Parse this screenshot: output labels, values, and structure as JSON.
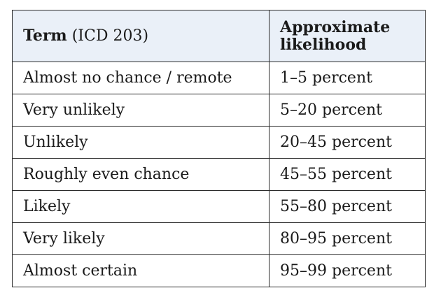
{
  "table": {
    "header": {
      "col1_bold": "Term",
      "col1_rest": " (ICD 203)",
      "col2_line1": "Approximate",
      "col2_line2": "likelihood"
    },
    "rows": [
      {
        "term": "Almost no chance / remote",
        "likelihood": "1–5 percent"
      },
      {
        "term": "Very unlikely",
        "likelihood": "5–20 percent"
      },
      {
        "term": "Unlikely",
        "likelihood": "20–45 percent"
      },
      {
        "term": "Roughly even chance",
        "likelihood": "45–55 percent"
      },
      {
        "term": "Likely",
        "likelihood": "55–80 percent"
      },
      {
        "term": "Very likely",
        "likelihood": "80–95 percent"
      },
      {
        "term": "Almost certain",
        "likelihood": "95–99 percent"
      }
    ]
  }
}
